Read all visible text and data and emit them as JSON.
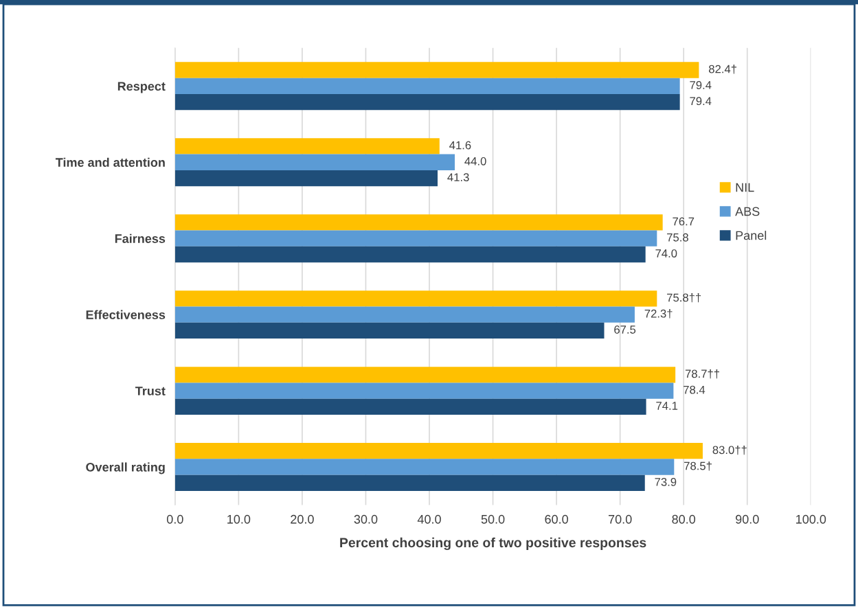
{
  "chart_data": {
    "type": "bar",
    "orientation": "horizontal",
    "xlabel": "Percent choosing one of two positive responses",
    "categories": [
      "Respect",
      "Time and attention",
      "Fairness",
      "Effectiveness",
      "Trust",
      "Overall rating"
    ],
    "series": [
      {
        "name": "NIL",
        "color": "#ffc000",
        "values": [
          82.4,
          41.6,
          76.7,
          75.8,
          78.7,
          83.0
        ],
        "value_labels": [
          "82.4†",
          "41.6",
          "76.7",
          "75.8††",
          "78.7††",
          "83.0††"
        ]
      },
      {
        "name": "ABS",
        "color": "#5b9bd5",
        "values": [
          79.4,
          44.0,
          75.8,
          72.3,
          78.4,
          78.5
        ],
        "value_labels": [
          "79.4",
          "44.0",
          "75.8",
          "72.3†",
          "78.4",
          "78.5†"
        ]
      },
      {
        "name": "Panel",
        "color": "#1f4e79",
        "values": [
          79.4,
          41.3,
          74.0,
          67.5,
          74.1,
          73.9
        ],
        "value_labels": [
          "79.4",
          "41.3",
          "74.0",
          "67.5",
          "74.1",
          "73.9"
        ]
      }
    ],
    "xlim": [
      0,
      100
    ],
    "xticks": [
      {
        "value": 0,
        "label": "0.0"
      },
      {
        "value": 10,
        "label": "10.0"
      },
      {
        "value": 20,
        "label": "20.0"
      },
      {
        "value": 30,
        "label": "30.0"
      },
      {
        "value": 40,
        "label": "40.0"
      },
      {
        "value": 50,
        "label": "50.0"
      },
      {
        "value": 60,
        "label": "60.0"
      },
      {
        "value": 70,
        "label": "70.0"
      },
      {
        "value": 80,
        "label": "80.0"
      },
      {
        "value": 90,
        "label": "90.0"
      },
      {
        "value": 100,
        "label": "100.0"
      }
    ],
    "grid": "x",
    "legend": "right"
  }
}
